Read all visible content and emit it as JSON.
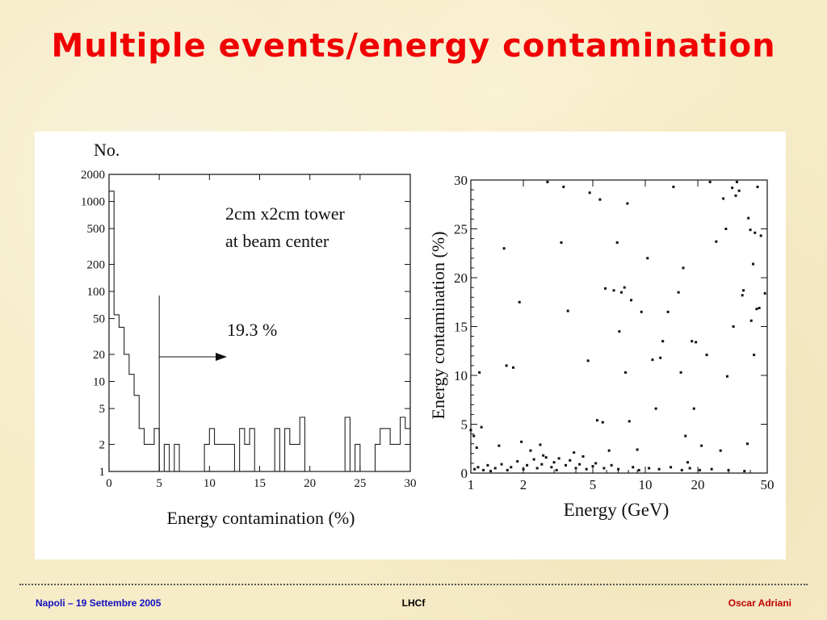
{
  "title": "Multiple events/energy contamination",
  "footer": {
    "left": "Napoli – 19 Settembre 2005",
    "center": "LHCf",
    "right": "Oscar Adriani"
  },
  "chart_data": [
    {
      "type": "histogram",
      "title": "",
      "ylabel": "No.",
      "xlabel": "Energy contamination (%)",
      "yscale": "log",
      "xlim": [
        0,
        30
      ],
      "ylim": [
        1,
        2000
      ],
      "xticks": [
        0,
        5,
        10,
        15,
        20,
        25,
        30
      ],
      "yticks": [
        1,
        2,
        5,
        10,
        20,
        50,
        100,
        200,
        500,
        1000,
        2000
      ],
      "annotation_lines": [
        "2cm x2cm tower",
        "at beam center"
      ],
      "arrow_label": "19.3 %",
      "threshold_x": 5,
      "bins": [
        {
          "x0": 0.0,
          "x1": 0.5,
          "count": 1300
        },
        {
          "x0": 0.5,
          "x1": 1.0,
          "count": 55
        },
        {
          "x0": 1.0,
          "x1": 1.5,
          "count": 40
        },
        {
          "x0": 1.5,
          "x1": 2.0,
          "count": 20
        },
        {
          "x0": 2.0,
          "x1": 2.5,
          "count": 12
        },
        {
          "x0": 2.5,
          "x1": 3.0,
          "count": 7
        },
        {
          "x0": 3.0,
          "x1": 3.5,
          "count": 3
        },
        {
          "x0": 3.5,
          "x1": 4.0,
          "count": 2
        },
        {
          "x0": 4.0,
          "x1": 4.5,
          "count": 2
        },
        {
          "x0": 4.5,
          "x1": 5.0,
          "count": 3
        },
        {
          "x0": 5.0,
          "x1": 5.5,
          "count": 1
        },
        {
          "x0": 5.5,
          "x1": 6.0,
          "count": 2
        },
        {
          "x0": 6.0,
          "x1": 6.5,
          "count": 1
        },
        {
          "x0": 6.5,
          "x1": 7.0,
          "count": 2
        },
        {
          "x0": 7.0,
          "x1": 9.5,
          "count": 1
        },
        {
          "x0": 9.5,
          "x1": 10.0,
          "count": 2
        },
        {
          "x0": 10.0,
          "x1": 10.5,
          "count": 3
        },
        {
          "x0": 10.5,
          "x1": 12.5,
          "count": 2
        },
        {
          "x0": 12.5,
          "x1": 13.0,
          "count": 1
        },
        {
          "x0": 13.0,
          "x1": 13.5,
          "count": 3
        },
        {
          "x0": 13.5,
          "x1": 14.0,
          "count": 2
        },
        {
          "x0": 14.0,
          "x1": 14.5,
          "count": 3
        },
        {
          "x0": 14.5,
          "x1": 16.5,
          "count": 1
        },
        {
          "x0": 16.5,
          "x1": 17.0,
          "count": 3
        },
        {
          "x0": 17.0,
          "x1": 17.5,
          "count": 1
        },
        {
          "x0": 17.5,
          "x1": 18.0,
          "count": 3
        },
        {
          "x0": 18.0,
          "x1": 19.0,
          "count": 2
        },
        {
          "x0": 19.0,
          "x1": 19.5,
          "count": 4
        },
        {
          "x0": 19.5,
          "x1": 23.5,
          "count": 1
        },
        {
          "x0": 23.5,
          "x1": 24.0,
          "count": 4
        },
        {
          "x0": 24.0,
          "x1": 24.5,
          "count": 1
        },
        {
          "x0": 24.5,
          "x1": 25.0,
          "count": 2
        },
        {
          "x0": 25.0,
          "x1": 26.5,
          "count": 1
        },
        {
          "x0": 26.5,
          "x1": 27.0,
          "count": 2
        },
        {
          "x0": 27.0,
          "x1": 28.0,
          "count": 3
        },
        {
          "x0": 28.0,
          "x1": 29.0,
          "count": 2
        },
        {
          "x0": 29.0,
          "x1": 29.5,
          "count": 4
        },
        {
          "x0": 29.5,
          "x1": 30.0,
          "count": 3
        }
      ]
    },
    {
      "type": "scatter",
      "title": "",
      "xlabel": "Energy (GeV)",
      "ylabel": "Energy contamination (%)",
      "xscale": "log",
      "xlim": [
        1,
        50
      ],
      "ylim": [
        0,
        30
      ],
      "xticks": [
        1,
        2,
        5,
        10,
        20,
        50
      ],
      "yticks": [
        0,
        5,
        10,
        15,
        20,
        25,
        30
      ],
      "points": [
        [
          1.0,
          4.4
        ],
        [
          1.04,
          3.8
        ],
        [
          1.08,
          2.6
        ],
        [
          1.12,
          10.3
        ],
        [
          1.15,
          4.7
        ],
        [
          1.45,
          2.8
        ],
        [
          1.55,
          23.0
        ],
        [
          1.6,
          11.0
        ],
        [
          1.75,
          10.8
        ],
        [
          1.9,
          17.5
        ],
        [
          1.95,
          3.2
        ],
        [
          2.2,
          2.3
        ],
        [
          2.5,
          2.9
        ],
        [
          2.6,
          1.8
        ],
        [
          2.75,
          29.8
        ],
        [
          3.2,
          1.5
        ],
        [
          3.3,
          23.6
        ],
        [
          3.4,
          29.3
        ],
        [
          3.6,
          16.6
        ],
        [
          3.9,
          2.1
        ],
        [
          4.4,
          1.7
        ],
        [
          4.7,
          11.5
        ],
        [
          4.8,
          28.7
        ],
        [
          5.3,
          5.4
        ],
        [
          5.5,
          28.0
        ],
        [
          5.7,
          5.2
        ],
        [
          5.9,
          18.9
        ],
        [
          6.2,
          2.3
        ],
        [
          6.6,
          18.7
        ],
        [
          6.9,
          23.6
        ],
        [
          7.1,
          14.5
        ],
        [
          7.3,
          18.5
        ],
        [
          7.6,
          19.0
        ],
        [
          7.7,
          10.3
        ],
        [
          7.9,
          27.6
        ],
        [
          8.1,
          5.3
        ],
        [
          8.3,
          17.7
        ],
        [
          9.0,
          2.4
        ],
        [
          9.5,
          16.5
        ],
        [
          10.3,
          22.0
        ],
        [
          11.0,
          11.6
        ],
        [
          11.5,
          6.6
        ],
        [
          12.2,
          11.8
        ],
        [
          12.6,
          13.5
        ],
        [
          13.5,
          16.5
        ],
        [
          14.5,
          29.3
        ],
        [
          15.5,
          18.5
        ],
        [
          16.0,
          10.3
        ],
        [
          16.5,
          21.0
        ],
        [
          17.0,
          3.8
        ],
        [
          17.5,
          1.1
        ],
        [
          18.5,
          13.5
        ],
        [
          19.0,
          6.6
        ],
        [
          19.5,
          13.4
        ],
        [
          21.0,
          2.8
        ],
        [
          22.5,
          12.1
        ],
        [
          23.5,
          29.8
        ],
        [
          25.5,
          23.7
        ],
        [
          27.0,
          2.3
        ],
        [
          28.0,
          28.1
        ],
        [
          29.0,
          25.0
        ],
        [
          29.5,
          9.9
        ],
        [
          31.5,
          29.2
        ],
        [
          32.0,
          15.0
        ],
        [
          33.0,
          28.4
        ],
        [
          33.5,
          29.8
        ],
        [
          34.5,
          28.9
        ],
        [
          36.0,
          18.2
        ],
        [
          36.5,
          18.7
        ],
        [
          38.5,
          3.0
        ],
        [
          39.0,
          26.1
        ],
        [
          40.0,
          24.9
        ],
        [
          40.5,
          15.6
        ],
        [
          41.5,
          21.4
        ],
        [
          42.0,
          12.1
        ],
        [
          42.5,
          24.6
        ],
        [
          43.5,
          16.8
        ],
        [
          44.0,
          29.3
        ],
        [
          45.0,
          16.9
        ],
        [
          46.0,
          24.3
        ],
        [
          48.5,
          18.4
        ],
        [
          1.05,
          0.4
        ],
        [
          1.1,
          0.6
        ],
        [
          1.18,
          0.3
        ],
        [
          1.25,
          0.8
        ],
        [
          1.3,
          0.2
        ],
        [
          1.38,
          0.5
        ],
        [
          1.5,
          0.9
        ],
        [
          1.62,
          0.3
        ],
        [
          1.7,
          0.6
        ],
        [
          1.85,
          1.2
        ],
        [
          2.0,
          0.4
        ],
        [
          2.1,
          0.8
        ],
        [
          2.3,
          1.4
        ],
        [
          2.4,
          0.5
        ],
        [
          2.55,
          0.9
        ],
        [
          2.7,
          1.6
        ],
        [
          2.9,
          0.6
        ],
        [
          3.0,
          1.1
        ],
        [
          3.1,
          0.3
        ],
        [
          3.5,
          0.8
        ],
        [
          3.7,
          1.3
        ],
        [
          4.0,
          0.5
        ],
        [
          4.2,
          0.9
        ],
        [
          4.6,
          0.4
        ],
        [
          5.0,
          0.7
        ],
        [
          5.2,
          1.0
        ],
        [
          5.8,
          0.5
        ],
        [
          6.4,
          0.8
        ],
        [
          7.0,
          0.4
        ],
        [
          8.5,
          0.6
        ],
        [
          9.2,
          0.3
        ],
        [
          10.5,
          0.5
        ],
        [
          12.0,
          0.4
        ],
        [
          14.0,
          0.6
        ],
        [
          16.2,
          0.3
        ],
        [
          18.0,
          0.5
        ],
        [
          20.5,
          0.3
        ],
        [
          24.0,
          0.4
        ],
        [
          30.0,
          0.3
        ],
        [
          37.0,
          0.2
        ]
      ]
    }
  ]
}
